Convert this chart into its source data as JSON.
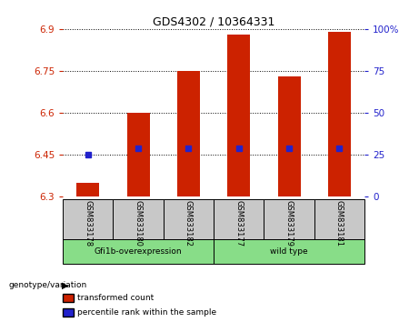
{
  "title": "GDS4302 / 10364331",
  "samples": [
    "GSM833178",
    "GSM833180",
    "GSM833182",
    "GSM833177",
    "GSM833179",
    "GSM833181"
  ],
  "bar_top": [
    6.35,
    6.6,
    6.75,
    6.88,
    6.73,
    6.89
  ],
  "bar_bottom": 6.3,
  "percentile_y": [
    6.45,
    6.473,
    6.473,
    6.473,
    6.473,
    6.473
  ],
  "ylim_left": [
    6.3,
    6.9
  ],
  "yticks_left": [
    6.3,
    6.45,
    6.6,
    6.75,
    6.9
  ],
  "yticks_right": [
    0,
    25,
    50,
    75,
    100
  ],
  "bar_color": "#CC2200",
  "percentile_color": "#2222CC",
  "left_tick_color": "#CC2200",
  "right_tick_color": "#2222CC",
  "legend_items": [
    "transformed count",
    "percentile rank within the sample"
  ],
  "xlabel_group": "genotype/variation",
  "background_label": "#c8c8c8",
  "green_color": "#88DD88",
  "groups_info": [
    {
      "start": 0,
      "end": 3,
      "label": "Gfi1b-overexpression"
    },
    {
      "start": 3,
      "end": 6,
      "label": "wild type"
    }
  ]
}
